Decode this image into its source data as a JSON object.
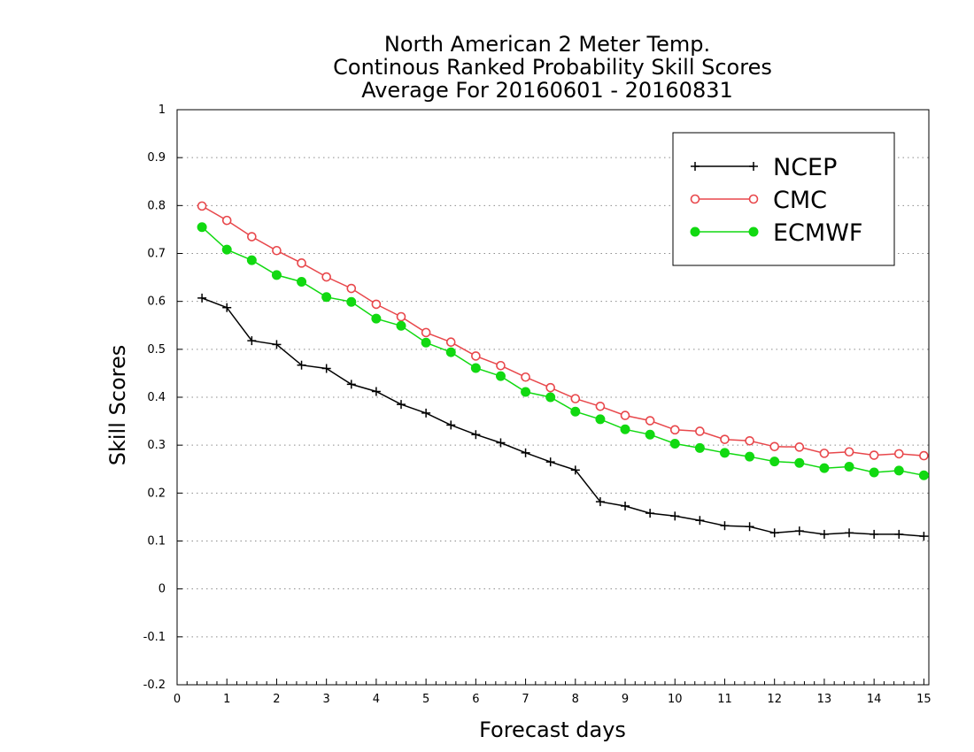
{
  "chart_data": {
    "type": "line",
    "title_lines": [
      "North American 2 Meter Temp.",
      "Continous Ranked Probability Skill Scores",
      "Average For 20160601 - 20160831"
    ],
    "xlabel": "Forecast days",
    "ylabel": "Skill Scores",
    "xlim": [
      0,
      15.1
    ],
    "ylim": [
      -0.2,
      1
    ],
    "xticks": [
      0,
      1,
      2,
      3,
      4,
      5,
      6,
      7,
      8,
      9,
      10,
      11,
      12,
      13,
      14,
      15
    ],
    "xtick_labels": [
      "0",
      "1",
      "2",
      "3",
      "4",
      "5",
      "6",
      "7",
      "8",
      "9",
      "10",
      "11",
      "12",
      "13",
      "14",
      "15"
    ],
    "yticks": [
      -0.2,
      -0.1,
      0,
      0.1,
      0.2,
      0.3,
      0.4,
      0.5,
      0.6,
      0.7,
      0.8,
      0.9,
      1
    ],
    "ytick_labels": [
      "-0.2",
      "-0.1",
      "0",
      "0.1",
      "0.2",
      "0.3",
      "0.4",
      "0.5",
      "0.6",
      "0.7",
      "0.8",
      "0.9",
      "1"
    ],
    "grid": "horizontal dotted",
    "legend_position": "top-right",
    "x": [
      0.5,
      1.0,
      1.5,
      2.0,
      2.5,
      3.0,
      3.5,
      4.0,
      4.5,
      5.0,
      5.5,
      6.0,
      6.5,
      7.0,
      7.5,
      8.0,
      8.5,
      9.0,
      9.5,
      10.0,
      10.5,
      11.0,
      11.5,
      12.0,
      12.5,
      13.0,
      13.5,
      14.0,
      14.5,
      15.0
    ],
    "series": [
      {
        "name": "NCEP",
        "color": "#000000",
        "marker": "plus",
        "values": [
          0.607,
          0.587,
          0.518,
          0.51,
          0.467,
          0.46,
          0.427,
          0.412,
          0.385,
          0.367,
          0.342,
          0.322,
          0.305,
          0.284,
          0.265,
          0.248,
          0.182,
          0.173,
          0.158,
          0.152,
          0.143,
          0.132,
          0.13,
          0.117,
          0.121,
          0.114,
          0.117,
          0.114,
          0.114,
          0.11
        ]
      },
      {
        "name": "CMC",
        "color": "#e8474b",
        "marker": "open-circle",
        "values": [
          0.799,
          0.769,
          0.735,
          0.706,
          0.68,
          0.651,
          0.627,
          0.594,
          0.568,
          0.535,
          0.515,
          0.486,
          0.466,
          0.442,
          0.42,
          0.397,
          0.381,
          0.362,
          0.351,
          0.332,
          0.329,
          0.312,
          0.309,
          0.297,
          0.296,
          0.283,
          0.286,
          0.279,
          0.282,
          0.278
        ]
      },
      {
        "name": "ECMWF",
        "color": "#11d911",
        "marker": "filled-circle",
        "values": [
          0.755,
          0.708,
          0.686,
          0.655,
          0.641,
          0.609,
          0.599,
          0.564,
          0.549,
          0.514,
          0.494,
          0.461,
          0.444,
          0.411,
          0.4,
          0.37,
          0.354,
          0.333,
          0.322,
          0.303,
          0.294,
          0.284,
          0.276,
          0.266,
          0.263,
          0.252,
          0.255,
          0.243,
          0.247,
          0.237
        ]
      }
    ]
  }
}
